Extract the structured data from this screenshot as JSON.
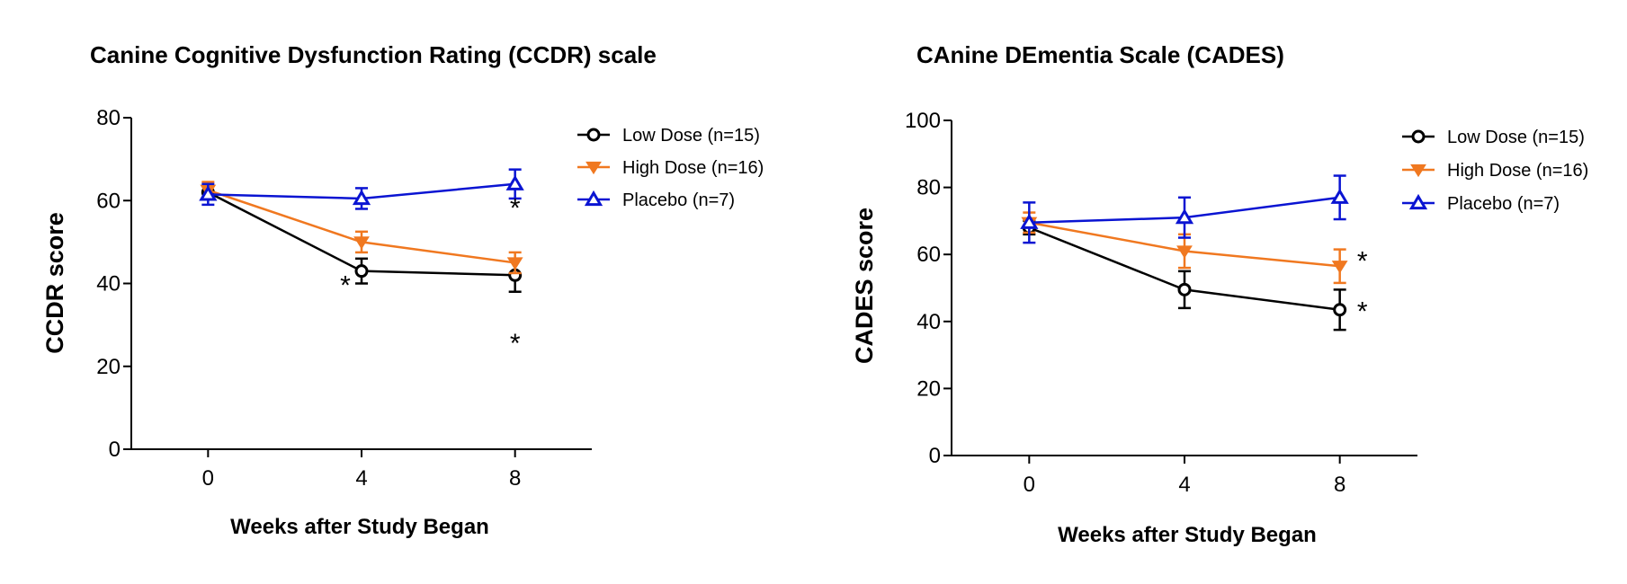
{
  "chart_data": [
    {
      "type": "line",
      "title": "Canine Cognitive Dysfunction Rating (CCDR) scale",
      "xlabel": "Weeks after Study Began",
      "ylabel": "CCDR score",
      "x": [
        0,
        4,
        8
      ],
      "xticks": [
        0,
        4,
        8
      ],
      "xlim": [
        -2,
        10
      ],
      "ylim": [
        0,
        80
      ],
      "yticks": [
        0,
        20,
        40,
        60,
        80
      ],
      "legend_position": "top-right",
      "grid": false,
      "series": [
        {
          "name": "Low Dose (n=15)",
          "color": "#000000",
          "marker": "open-circle",
          "values": [
            62,
            43,
            42
          ],
          "error": [
            1.5,
            3,
            4
          ]
        },
        {
          "name": "High Dose (n=16)",
          "color": "#f07820",
          "marker": "filled-triangle-down",
          "values": [
            62.5,
            50,
            45
          ],
          "error": [
            2,
            2.5,
            2.5
          ]
        },
        {
          "name": "Placebo (n=7)",
          "color": "#0a14d2",
          "marker": "open-triangle-up",
          "values": [
            61.5,
            60.5,
            64
          ],
          "error": [
            2.5,
            2.5,
            3.5
          ]
        }
      ],
      "annotations": [
        {
          "text": "*",
          "x": 4,
          "y": 40,
          "side": "left"
        },
        {
          "text": "*",
          "x": 8,
          "y": 50,
          "side": "above"
        },
        {
          "text": "*",
          "x": 8,
          "y": 33,
          "side": "below"
        }
      ]
    },
    {
      "type": "line",
      "title": "CAnine DEmentia Scale (CADES)",
      "xlabel": "Weeks after Study Began",
      "ylabel": "CADES score",
      "x": [
        0,
        4,
        8
      ],
      "xticks": [
        0,
        4,
        8
      ],
      "xlim": [
        -2,
        10
      ],
      "ylim": [
        0,
        100
      ],
      "yticks": [
        0,
        20,
        40,
        60,
        80,
        100
      ],
      "legend_position": "top-right",
      "grid": false,
      "series": [
        {
          "name": "Low Dose (n=15)",
          "color": "#000000",
          "marker": "open-circle",
          "values": [
            68,
            49.5,
            43.5
          ],
          "error": [
            2,
            5.5,
            6
          ]
        },
        {
          "name": "High Dose (n=16)",
          "color": "#f07820",
          "marker": "filled-triangle-down",
          "values": [
            69.5,
            61,
            56.5
          ],
          "error": [
            3,
            5,
            5
          ]
        },
        {
          "name": "Placebo (n=7)",
          "color": "#0a14d2",
          "marker": "open-triangle-up",
          "values": [
            69.5,
            71,
            77
          ],
          "error": [
            6,
            6,
            6.5
          ]
        }
      ],
      "annotations": [
        {
          "text": "*",
          "x": 8,
          "y": 58,
          "side": "right"
        },
        {
          "text": "*",
          "x": 8,
          "y": 43,
          "side": "right"
        }
      ]
    }
  ]
}
